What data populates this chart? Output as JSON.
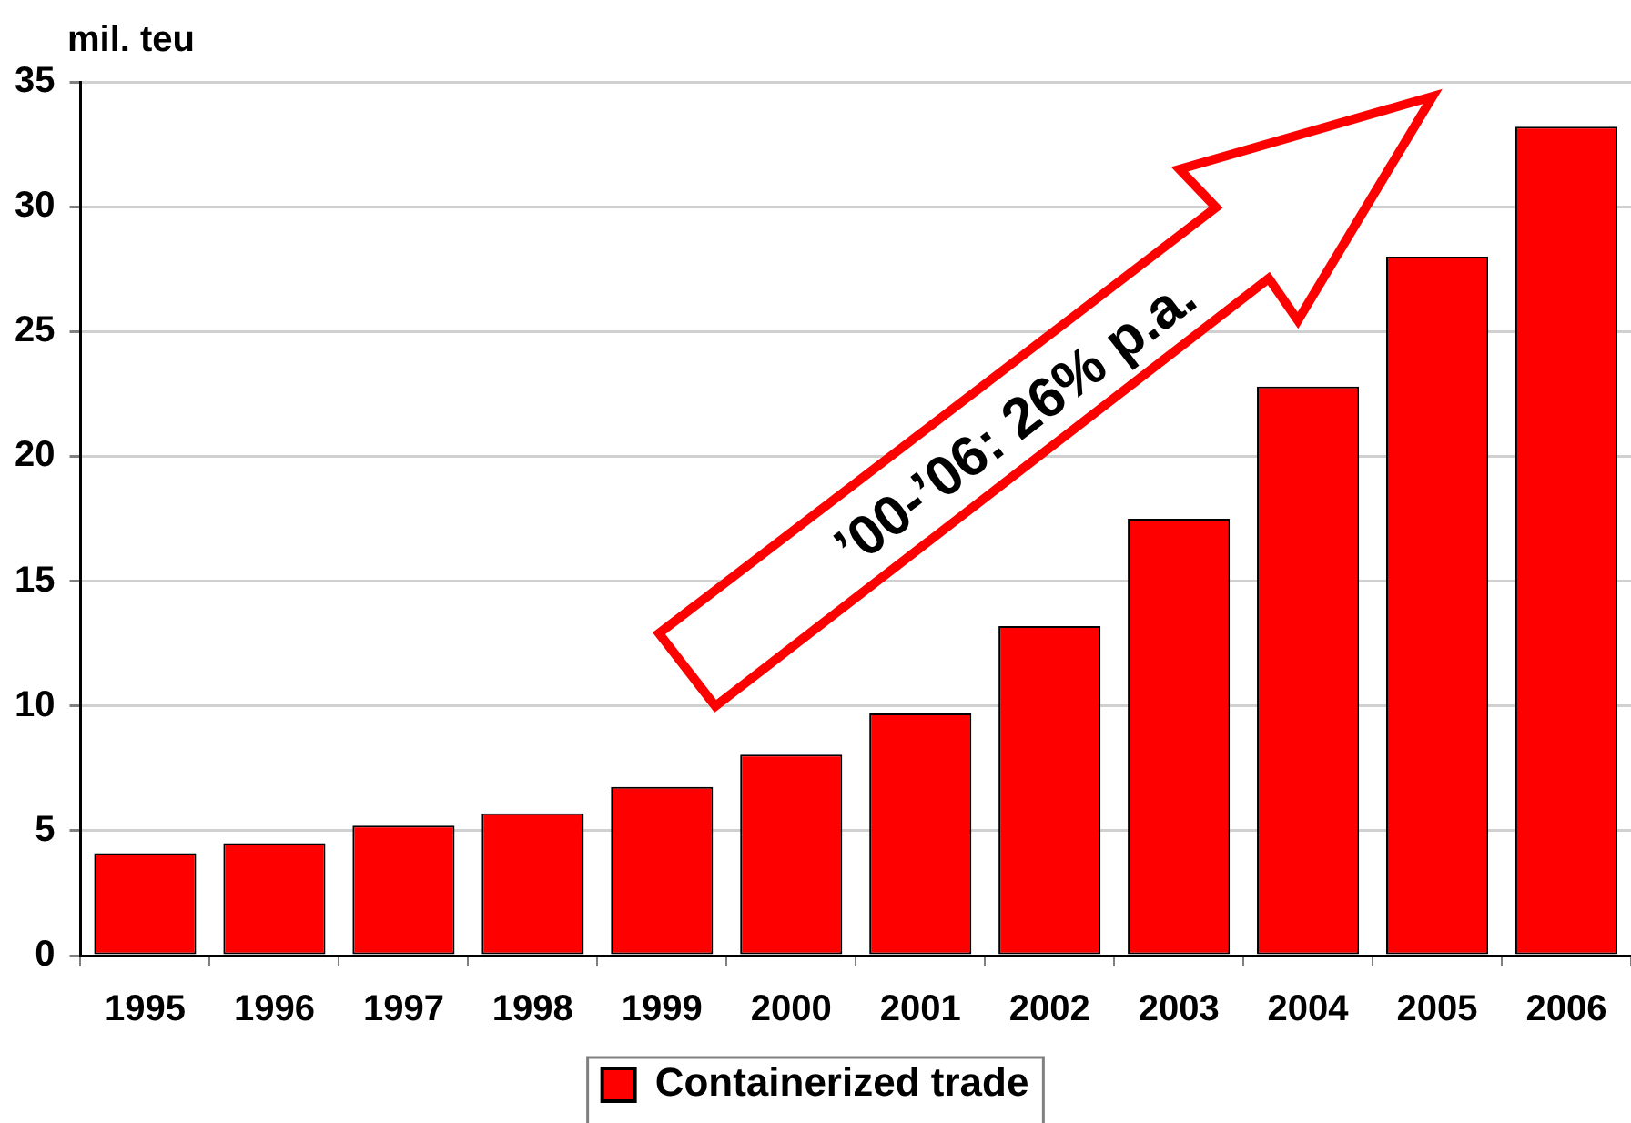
{
  "chart_data": {
    "type": "bar",
    "ylabel": "mil. teu",
    "categories": [
      "1995",
      "1996",
      "1997",
      "1998",
      "1999",
      "2000",
      "2001",
      "2002",
      "2003",
      "2004",
      "2005",
      "2006"
    ],
    "series": [
      {
        "name": "Containerized trade",
        "color": "#ff0000",
        "values": [
          4.1,
          4.5,
          5.2,
          5.7,
          6.75,
          8.05,
          9.7,
          13.2,
          17.5,
          22.8,
          28.0,
          33.2
        ]
      }
    ],
    "ylim": [
      0,
      35
    ],
    "yticks": [
      0,
      5,
      10,
      15,
      20,
      25,
      30,
      35
    ],
    "grid": "y",
    "legend": "bottom",
    "annotations": [
      "’00-’06: 26% p.a."
    ]
  }
}
